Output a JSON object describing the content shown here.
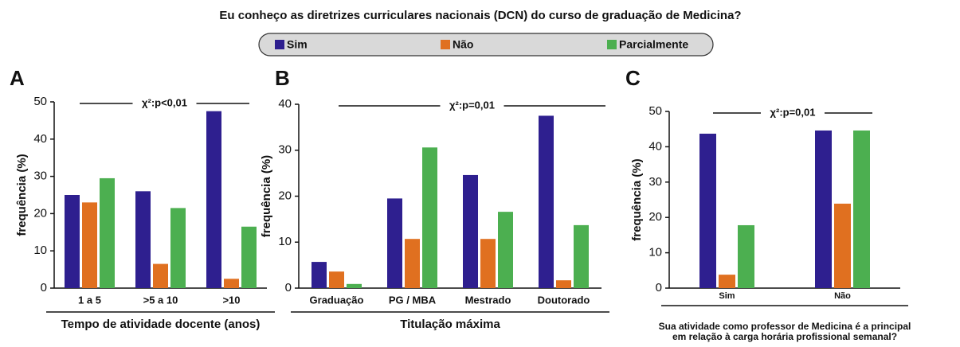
{
  "title": "Eu conheço as diretrizes curriculares nacionais (DCN) do curso de graduação de Medicina?",
  "chart_data": [
    {
      "type": "bar",
      "panel": "A",
      "annotation": "χ²:p<0,01",
      "ylabel": "frequência (%)",
      "xlabel": [
        "Tempo de atividade docente (anos)"
      ],
      "categories": [
        "1 a 5",
        ">5 a 10",
        ">10"
      ],
      "series": [
        {
          "name": "Sim",
          "color": "#2e1f8f",
          "values": [
            25,
            26,
            47.5
          ]
        },
        {
          "name": "Não",
          "color": "#e07020",
          "values": [
            23,
            6.5,
            2.5
          ]
        },
        {
          "name": "Parcialmente",
          "color": "#4caf50",
          "values": [
            29.5,
            21.5,
            16.5
          ]
        }
      ],
      "ylim": [
        0,
        50
      ],
      "yticks": [
        0,
        10,
        20,
        30,
        40,
        50
      ]
    },
    {
      "type": "bar",
      "panel": "B",
      "annotation": "χ²:p=0,01",
      "ylabel": "frequência (%)",
      "xlabel": [
        "Titulação máxima"
      ],
      "categories": [
        "Graduação",
        "PG / MBA",
        "Mestrado",
        "Doutorado"
      ],
      "series": [
        {
          "name": "Sim",
          "color": "#2e1f8f",
          "values": [
            5.7,
            19.5,
            24.6,
            37.5
          ]
        },
        {
          "name": "Não",
          "color": "#e07020",
          "values": [
            3.6,
            10.7,
            10.7,
            1.7
          ]
        },
        {
          "name": "Parcialmente",
          "color": "#4caf50",
          "values": [
            0.9,
            30.6,
            16.6,
            13.7
          ]
        }
      ],
      "ylim": [
        0,
        40
      ],
      "yticks": [
        0,
        10,
        20,
        30,
        40
      ]
    },
    {
      "type": "bar",
      "panel": "C",
      "annotation": "χ²:p=0,01",
      "ylabel": "frequência (%)",
      "xlabel": [
        "Sua atividade como professor de Medicina é a principal",
        "em relação à carga horária profissional semanal?"
      ],
      "categories": [
        "Sim",
        "Não"
      ],
      "series": [
        {
          "name": "Sim",
          "color": "#2e1f8f",
          "values": [
            43.7,
            44.6
          ]
        },
        {
          "name": "Não",
          "color": "#e07020",
          "values": [
            3.8,
            23.9
          ]
        },
        {
          "name": "Parcialmente",
          "color": "#4caf50",
          "values": [
            17.8,
            44.6
          ]
        }
      ],
      "ylim": [
        0,
        50
      ],
      "yticks": [
        0,
        10,
        20,
        30,
        40,
        50
      ]
    }
  ]
}
